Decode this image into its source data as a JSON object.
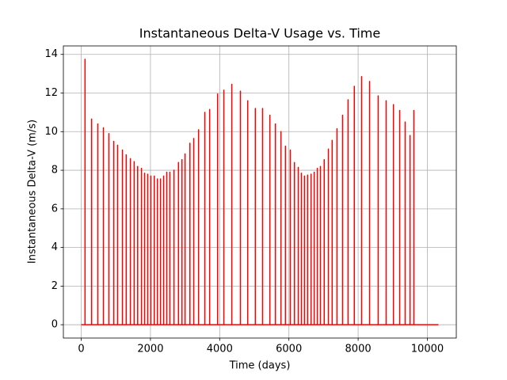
{
  "chart_data": {
    "type": "line",
    "title": "Instantaneous Delta-V Usage vs. Time",
    "xlabel": "Time (days)",
    "ylabel": "Instantaneous Delta-V (m/s)",
    "color": "#ff0000",
    "grid": true,
    "xlim": [
      -516,
      10836
    ],
    "ylim": [
      -0.69,
      14.44
    ],
    "xticks": [
      0,
      2000,
      4000,
      6000,
      8000,
      10000
    ],
    "yticks": [
      0,
      2,
      4,
      6,
      8,
      10,
      12,
      14
    ],
    "x": [
      0,
      110,
      110,
      110,
      300,
      300,
      300,
      480,
      480,
      480,
      640,
      640,
      640,
      800,
      800,
      800,
      940,
      940,
      940,
      1050,
      1050,
      1050,
      1190,
      1190,
      1190,
      1300,
      1300,
      1300,
      1420,
      1420,
      1420,
      1530,
      1530,
      1530,
      1630,
      1630,
      1630,
      1740,
      1740,
      1740,
      1830,
      1830,
      1830,
      1920,
      1920,
      1920,
      2010,
      2010,
      2010,
      2110,
      2110,
      2110,
      2200,
      2200,
      2200,
      2290,
      2290,
      2290,
      2380,
      2380,
      2380,
      2470,
      2470,
      2470,
      2560,
      2560,
      2560,
      2680,
      2680,
      2680,
      2810,
      2810,
      2810,
      2910,
      2910,
      2910,
      3000,
      3000,
      3000,
      3140,
      3140,
      3140,
      3250,
      3250,
      3250,
      3390,
      3390,
      3390,
      3570,
      3570,
      3570,
      3710,
      3710,
      3710,
      3940,
      3940,
      3940,
      4120,
      4120,
      4120,
      4350,
      4350,
      4350,
      4600,
      4600,
      4600,
      4810,
      4810,
      4810,
      5030,
      5030,
      5030,
      5240,
      5240,
      5240,
      5450,
      5450,
      5450,
      5610,
      5610,
      5610,
      5770,
      5770,
      5770,
      5900,
      5900,
      5900,
      6040,
      6040,
      6040,
      6160,
      6160,
      6160,
      6270,
      6270,
      6270,
      6360,
      6360,
      6360,
      6450,
      6450,
      6450,
      6540,
      6540,
      6540,
      6640,
      6640,
      6640,
      6730,
      6730,
      6730,
      6820,
      6820,
      6820,
      6910,
      6910,
      6910,
      7020,
      7020,
      7020,
      7140,
      7140,
      7140,
      7250,
      7250,
      7250,
      7390,
      7390,
      7390,
      7550,
      7550,
      7550,
      7710,
      7710,
      7710,
      7890,
      7890,
      7890,
      8100,
      8100,
      8100,
      8330,
      8330,
      8330,
      8580,
      8580,
      8580,
      8810,
      8810,
      8810,
      9020,
      9020,
      9020,
      9200,
      9200,
      9200,
      9360,
      9360,
      9360,
      9500,
      9500,
      9500,
      9610,
      9610,
      9610,
      10320
    ],
    "values": [
      0,
      0,
      13.75,
      0,
      0,
      10.65,
      0,
      0,
      10.4,
      0,
      0,
      10.2,
      0,
      0,
      9.9,
      0,
      0,
      9.5,
      0,
      0,
      9.3,
      0,
      0,
      9.05,
      0,
      0,
      8.8,
      0,
      0,
      8.6,
      0,
      0,
      8.45,
      0,
      0,
      8.2,
      0,
      0,
      8.1,
      0,
      0,
      7.85,
      0,
      0,
      7.8,
      0,
      0,
      7.7,
      0,
      0,
      7.7,
      0,
      0,
      7.55,
      0,
      0,
      7.55,
      0,
      0,
      7.7,
      0,
      0,
      7.9,
      0,
      0,
      7.9,
      0,
      0,
      8.0,
      0,
      0,
      8.4,
      0,
      0,
      8.55,
      0,
      0,
      8.85,
      0,
      0,
      9.4,
      0,
      0,
      9.65,
      0,
      0,
      10.1,
      0,
      0,
      11.0,
      0,
      0,
      11.15,
      0,
      0,
      11.95,
      0,
      0,
      12.15,
      0,
      0,
      12.45,
      0,
      0,
      12.1,
      0,
      0,
      11.6,
      0,
      0,
      11.2,
      0,
      0,
      11.2,
      0,
      0,
      10.85,
      0,
      0,
      10.4,
      0,
      0,
      10.0,
      0,
      0,
      9.25,
      0,
      0,
      9.05,
      0,
      0,
      8.4,
      0,
      0,
      8.15,
      0,
      0,
      7.85,
      0,
      0,
      7.7,
      0,
      0,
      7.75,
      0,
      0,
      7.8,
      0,
      0,
      7.9,
      0,
      0,
      8.1,
      0,
      0,
      8.2,
      0,
      0,
      8.55,
      0,
      0,
      9.1,
      0,
      0,
      9.55,
      0,
      0,
      10.15,
      0,
      0,
      10.85,
      0,
      0,
      11.65,
      0,
      0,
      12.35,
      0,
      0,
      12.85,
      0,
      0,
      12.6,
      0,
      0,
      11.85,
      0,
      0,
      11.6,
      0,
      0,
      11.4,
      0,
      0,
      11.1,
      0,
      0,
      10.5,
      0,
      0,
      9.8,
      0,
      0,
      11.1,
      0,
      0
    ]
  }
}
